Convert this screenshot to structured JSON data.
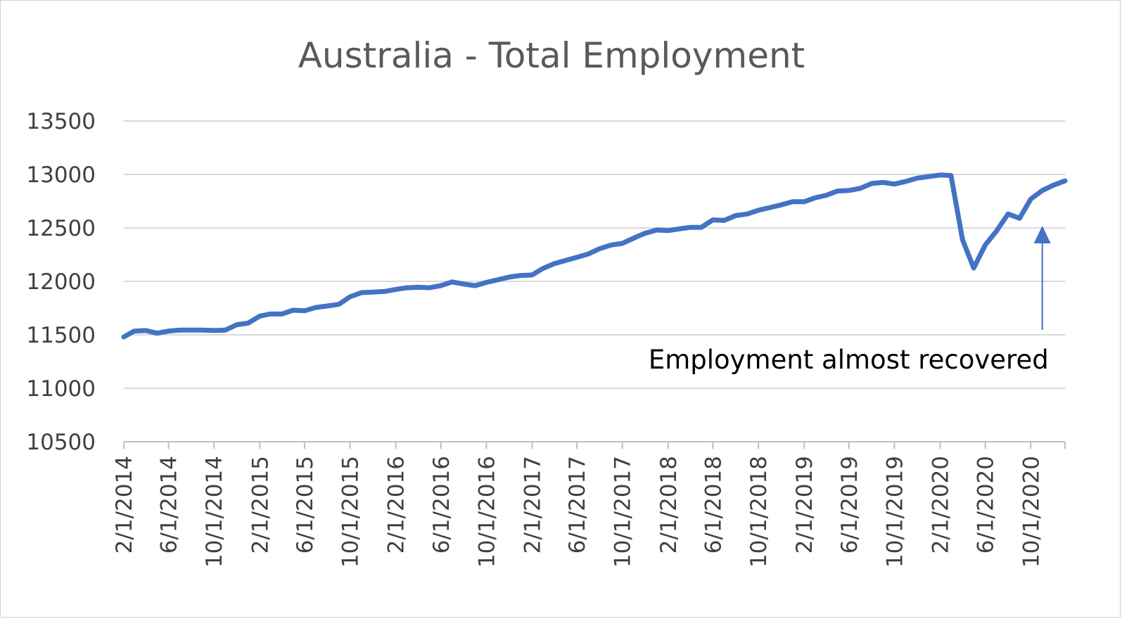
{
  "chart_data": {
    "type": "line",
    "title": "Australia - Total Employment",
    "xlabel": "",
    "ylabel": "",
    "ylim": [
      10500,
      13500
    ],
    "yticks": [
      10500,
      11000,
      11500,
      12000,
      12500,
      13000,
      13500
    ],
    "x_tick_labels": [
      "2/1/2014",
      "6/1/2014",
      "10/1/2014",
      "2/1/2015",
      "6/1/2015",
      "10/1/2015",
      "2/1/2016",
      "6/1/2016",
      "10/1/2016",
      "2/1/2017",
      "6/1/2017",
      "10/1/2017",
      "2/1/2018",
      "6/1/2018",
      "10/1/2018",
      "2/1/2019",
      "6/1/2019",
      "10/1/2019",
      "2/1/2020",
      "6/1/2020",
      "10/1/2020"
    ],
    "x_start": "2/1/2014",
    "x_end": "1/1/2021",
    "grid": true,
    "legend": "none",
    "series": [
      {
        "color": "#4472C4",
        "values": [
          11480,
          11535,
          11540,
          11515,
          11535,
          11545,
          11545,
          11545,
          11540,
          11545,
          11595,
          11610,
          11675,
          11695,
          11695,
          11730,
          11725,
          11755,
          11770,
          11785,
          11855,
          11895,
          11900,
          11905,
          11925,
          11940,
          11945,
          11940,
          11960,
          11995,
          11975,
          11960,
          11990,
          12015,
          12040,
          12055,
          12060,
          12120,
          12165,
          12195,
          12225,
          12255,
          12305,
          12340,
          12355,
          12405,
          12450,
          12480,
          12475,
          12490,
          12505,
          12505,
          12575,
          12570,
          12615,
          12630,
          12665,
          12690,
          12715,
          12745,
          12745,
          12780,
          12805,
          12845,
          12850,
          12870,
          12915,
          12925,
          12910,
          12935,
          12965,
          12980,
          12995,
          12990,
          12390,
          12125,
          12340,
          12470,
          12630,
          12590,
          12770,
          12850,
          12900,
          12940
        ]
      }
    ],
    "annotations": [
      {
        "text": "Employment almost recovered",
        "arrow_target": {
          "x": "11/1/2020",
          "y": 12500
        }
      }
    ]
  }
}
